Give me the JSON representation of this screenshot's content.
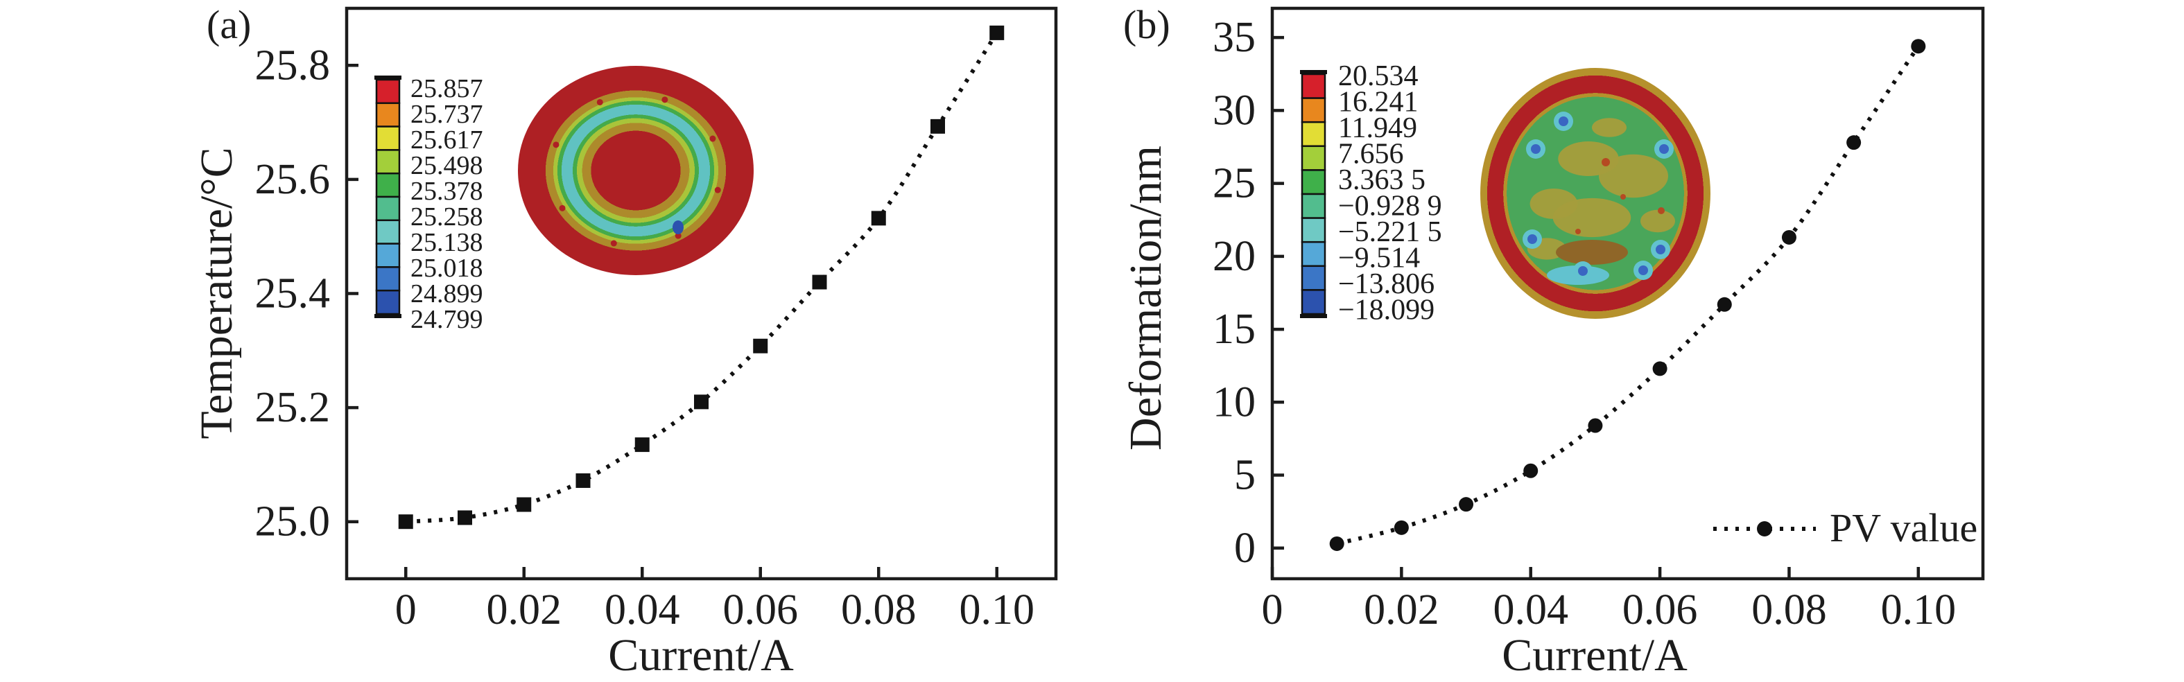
{
  "figure": {
    "description": "Two-panel scientific figure: (a) mirror temperature vs coil current with temperature contour inset; (b) mirror surface deformation vs coil current with deformation contour inset",
    "text_color": "#1c1c1c",
    "background": "#ffffff"
  },
  "chart_data": [
    {
      "id": "a",
      "type": "scatter",
      "panel_label": "(a)",
      "xlabel": "Current/A",
      "ylabel": "Temperature/°C",
      "marker": "square",
      "marker_color": "#111111",
      "line_style": "dotted",
      "x": [
        0,
        0.01,
        0.02,
        0.03,
        0.04,
        0.05,
        0.06,
        0.07,
        0.08,
        0.09,
        0.1
      ],
      "y": [
        25.0,
        25.007,
        25.03,
        25.072,
        25.135,
        25.21,
        25.308,
        25.42,
        25.532,
        25.693,
        25.857
      ],
      "xlim": [
        -0.01,
        0.11
      ],
      "ylim": [
        24.9,
        25.9
      ],
      "xticks": {
        "values": [
          0,
          0.02,
          0.04,
          0.06,
          0.08,
          0.1
        ],
        "labels": [
          "0",
          "0.02",
          "0.04",
          "0.06",
          "0.08",
          "0.10"
        ]
      },
      "yticks": {
        "values": [
          25.0,
          25.2,
          25.4,
          25.6,
          25.8
        ],
        "labels": [
          "25.0",
          "25.2",
          "25.4",
          "25.6",
          "25.8"
        ]
      },
      "grid": false,
      "colorbar": {
        "labels": [
          "25.857",
          "25.737",
          "25.617",
          "25.498",
          "25.378",
          "25.258",
          "25.138",
          "25.018",
          "24.899",
          "24.799"
        ],
        "colors": [
          "#d6202b",
          "#e8871e",
          "#e2dd35",
          "#a3cf3a",
          "#3fb04a",
          "#52bd8e",
          "#6fc9c4",
          "#55a8d8",
          "#3b76c6",
          "#2c52ae"
        ]
      },
      "inset": "circular temperature contour map of mirror: red rim and red core with concentric olive, yellow-green, green and cyan rings"
    },
    {
      "id": "b",
      "type": "scatter",
      "panel_label": "(b)",
      "xlabel": "Current/A",
      "ylabel": "Deformation/nm",
      "marker": "circle",
      "marker_color": "#111111",
      "line_style": "dotted",
      "legend": {
        "label": "PV value",
        "position": "lower right"
      },
      "x": [
        0.01,
        0.02,
        0.03,
        0.04,
        0.05,
        0.06,
        0.07,
        0.08,
        0.09,
        0.1
      ],
      "y": [
        0.3,
        1.4,
        3.0,
        5.3,
        8.4,
        12.3,
        16.7,
        21.3,
        27.8,
        34.4
      ],
      "xlim": [
        0,
        0.11
      ],
      "ylim": [
        -2.1,
        37.0
      ],
      "xticks": {
        "values": [
          0,
          0.02,
          0.04,
          0.06,
          0.08,
          0.1
        ],
        "labels": [
          "0",
          "0.02",
          "0.04",
          "0.06",
          "0.08",
          "0.10"
        ]
      },
      "yticks": {
        "values": [
          0,
          5,
          10,
          15,
          20,
          25,
          30,
          35
        ],
        "labels": [
          "0",
          "5",
          "10",
          "15",
          "20",
          "25",
          "30",
          "35"
        ]
      },
      "grid": false,
      "colorbar": {
        "labels": [
          "20.534",
          "16.241",
          "11.949",
          "7.656",
          "3.363 5",
          "−0.928 9",
          "−5.221 5",
          "−9.514",
          "−13.806",
          "−18.099"
        ],
        "colors": [
          "#d6202b",
          "#e8871e",
          "#e2dd35",
          "#a3cf3a",
          "#3fb04a",
          "#52bd8e",
          "#6fc9c4",
          "#55a8d8",
          "#3b76c6",
          "#2c52ae"
        ]
      },
      "inset": "circular deformation contour map of mirror: olive rim, red ring, mottled green interior with tan patches, brown blob and small blue-cyan spots"
    }
  ]
}
